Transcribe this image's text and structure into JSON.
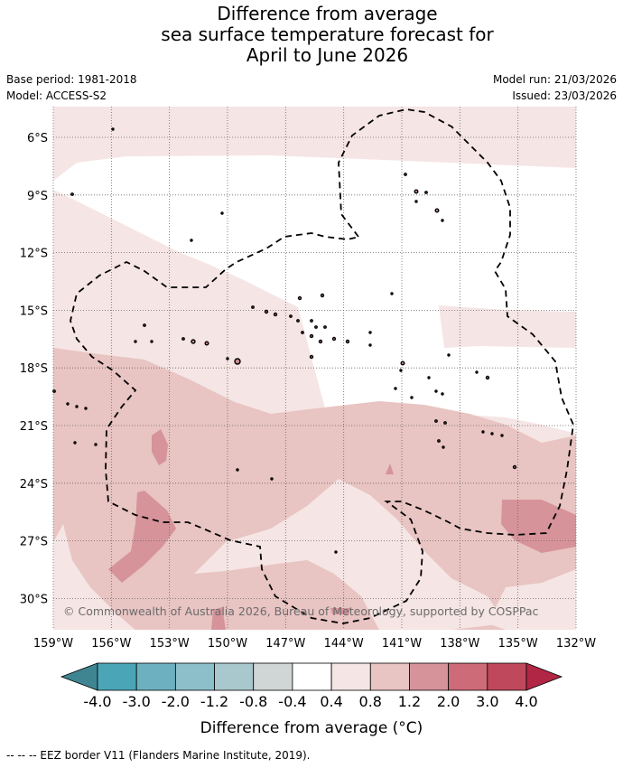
{
  "title": {
    "line1": "Difference from average",
    "line2": "sea surface temperature forecast for",
    "line3": "April to June 2026"
  },
  "meta": {
    "base_period": "Base period: 1981-2018",
    "model": "Model: ACCESS-S2",
    "model_run": "Model run: 21/03/2026",
    "issued": "Issued: 23/03/2026"
  },
  "map": {
    "lat_labels": [
      "6°S",
      "9°S",
      "12°S",
      "15°S",
      "18°S",
      "21°S",
      "24°S",
      "27°S",
      "30°S"
    ],
    "lon_labels": [
      "159°W",
      "156°W",
      "153°W",
      "150°W",
      "147°W",
      "144°W",
      "141°W",
      "138°W",
      "135°W",
      "132°W"
    ],
    "copyright": "© Commonwealth of Australia 2026, Bureau of Meteorology, supported by COSPPac"
  },
  "colorbar": {
    "ticks": [
      "-4.0",
      "-3.0",
      "-2.0",
      "-1.2",
      "-0.8",
      "-0.4",
      "0.4",
      "0.8",
      "1.2",
      "2.0",
      "3.0",
      "4.0"
    ],
    "colors": [
      "#3f8591",
      "#4aa6b6",
      "#6db1c0",
      "#8dbfca",
      "#a9c8cd",
      "#d0d6d6",
      "#ffffff",
      "#f5e5e4",
      "#e8c4c2",
      "#d6939a",
      "#cd6b78",
      "#c0485c",
      "#b22645"
    ],
    "label": "Difference from average (°C)"
  },
  "legend": {
    "eez": "--  --  -- EEZ border V11 (Flanders Marine Institute, 2019)."
  }
}
